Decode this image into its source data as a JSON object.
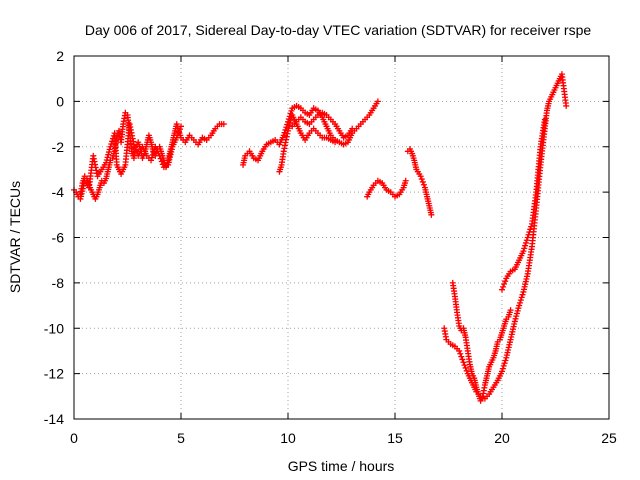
{
  "chart_data": {
    "type": "scatter",
    "title": "Day 006 of 2017, Sidereal Day-to-day VTEC variation (SDTVAR) for receiver rspe",
    "xlabel": "GPS time / hours",
    "ylabel": "SDTVAR / TECUs",
    "xlim": [
      0,
      25
    ],
    "ylim": [
      -14,
      2
    ],
    "xticks": [
      "0",
      "5",
      "10",
      "15",
      "20",
      "25"
    ],
    "yticks": [
      "-14",
      "-12",
      "-10",
      "-8",
      "-6",
      "-4",
      "-2",
      "0",
      "2"
    ],
    "grid": true,
    "marker": "+",
    "color": "#ff0000",
    "series": [
      {
        "segments": [
          [
            [
              0.0,
              -3.9
            ],
            [
              0.1,
              -4.0
            ],
            [
              0.2,
              -4.2
            ],
            [
              0.3,
              -4.1
            ],
            [
              0.4,
              -3.6
            ],
            [
              0.5,
              -3.3
            ],
            [
              0.6,
              -3.4
            ],
            [
              0.7,
              -3.7
            ],
            [
              0.8,
              -3.9
            ],
            [
              0.9,
              -4.1
            ],
            [
              1.0,
              -4.3
            ],
            [
              1.1,
              -4.1
            ],
            [
              1.2,
              -3.8
            ],
            [
              1.3,
              -3.5
            ],
            [
              1.4,
              -3.6
            ],
            [
              1.5,
              -3.4
            ],
            [
              1.6,
              -3.0
            ],
            [
              1.7,
              -2.6
            ],
            [
              1.8,
              -2.5
            ],
            [
              1.9,
              -2.2
            ],
            [
              2.0,
              -1.5
            ],
            [
              2.1,
              -1.3
            ],
            [
              2.2,
              -1.8
            ],
            [
              2.3,
              -1.0
            ],
            [
              2.4,
              -0.5
            ],
            [
              2.5,
              -0.6
            ],
            [
              2.6,
              -1.4
            ],
            [
              2.7,
              -2.2
            ],
            [
              2.8,
              -2.5
            ],
            [
              2.9,
              -2.0
            ],
            [
              3.0,
              -1.8
            ],
            [
              3.1,
              -2.1
            ],
            [
              3.2,
              -2.5
            ],
            [
              3.3,
              -2.3
            ],
            [
              3.4,
              -1.9
            ],
            [
              3.5,
              -1.5
            ],
            [
              3.6,
              -1.8
            ],
            [
              3.7,
              -2.2
            ],
            [
              3.8,
              -2.4
            ],
            [
              3.9,
              -2.1
            ],
            [
              4.0,
              -2.0
            ],
            [
              4.1,
              -2.3
            ],
            [
              4.2,
              -2.6
            ],
            [
              4.3,
              -2.9
            ],
            [
              4.4,
              -2.6
            ],
            [
              4.5,
              -2.2
            ],
            [
              4.6,
              -1.8
            ],
            [
              4.7,
              -1.4
            ],
            [
              4.8,
              -1.0
            ],
            [
              4.9,
              -1.3
            ],
            [
              5.0,
              -1.6
            ],
            [
              5.2,
              -1.8
            ],
            [
              5.4,
              -1.5
            ],
            [
              5.6,
              -1.7
            ],
            [
              5.8,
              -1.9
            ],
            [
              6.0,
              -1.6
            ],
            [
              6.2,
              -1.7
            ],
            [
              6.4,
              -1.5
            ],
            [
              6.6,
              -1.2
            ],
            [
              6.8,
              -1.0
            ],
            [
              7.0,
              -1.0
            ]
          ],
          [
            [
              0.3,
              -4.3
            ],
            [
              0.5,
              -3.5
            ],
            [
              0.7,
              -3.8
            ],
            [
              0.9,
              -2.4
            ],
            [
              1.1,
              -3.3
            ],
            [
              1.3,
              -3.0
            ],
            [
              1.5,
              -2.7
            ],
            [
              1.7,
              -2.0
            ],
            [
              1.9,
              -1.4
            ],
            [
              2.0,
              -2.8
            ],
            [
              2.2,
              -3.2
            ],
            [
              2.4,
              -2.8
            ],
            [
              2.6,
              -1.0
            ],
            [
              2.8,
              -1.9
            ],
            [
              3.0,
              -2.4
            ],
            [
              3.2,
              -2.0
            ],
            [
              3.4,
              -2.4
            ],
            [
              3.6,
              -2.6
            ],
            [
              3.8,
              -2.0
            ],
            [
              4.0,
              -2.4
            ],
            [
              4.2,
              -2.9
            ],
            [
              4.4,
              -2.8
            ],
            [
              4.6,
              -2.0
            ],
            [
              4.8,
              -1.6
            ],
            [
              5.0,
              -1.1
            ]
          ],
          [
            [
              7.9,
              -2.8
            ],
            [
              8.0,
              -2.4
            ],
            [
              8.2,
              -2.2
            ],
            [
              8.4,
              -2.5
            ],
            [
              8.6,
              -2.6
            ],
            [
              8.8,
              -2.2
            ],
            [
              9.0,
              -1.9
            ],
            [
              9.2,
              -1.8
            ],
            [
              9.4,
              -1.7
            ],
            [
              9.6,
              -1.9
            ],
            [
              9.8,
              -1.5
            ],
            [
              10.0,
              -0.9
            ],
            [
              10.2,
              -0.3
            ],
            [
              10.4,
              -0.2
            ],
            [
              10.6,
              -0.3
            ],
            [
              10.8,
              -0.5
            ],
            [
              11.0,
              -0.6
            ],
            [
              11.2,
              -0.3
            ],
            [
              11.4,
              -0.4
            ],
            [
              11.6,
              -0.7
            ],
            [
              11.8,
              -1.1
            ],
            [
              12.0,
              -1.5
            ],
            [
              12.2,
              -1.7
            ],
            [
              12.4,
              -1.8
            ],
            [
              12.6,
              -1.9
            ],
            [
              12.8,
              -1.8
            ],
            [
              13.0,
              -1.4
            ],
            [
              13.2,
              -1.2
            ],
            [
              13.4,
              -1.0
            ],
            [
              13.6,
              -0.8
            ],
            [
              13.8,
              -0.6
            ],
            [
              14.0,
              -0.3
            ],
            [
              14.2,
              0.0
            ]
          ],
          [
            [
              9.6,
              -3.1
            ],
            [
              9.7,
              -2.8
            ],
            [
              9.8,
              -2.2
            ],
            [
              10.0,
              -1.3
            ],
            [
              10.2,
              -0.6
            ],
            [
              10.4,
              -1.0
            ],
            [
              10.6,
              -1.4
            ],
            [
              10.8,
              -1.7
            ],
            [
              11.0,
              -1.4
            ],
            [
              11.2,
              -1.2
            ],
            [
              11.4,
              -1.4
            ],
            [
              11.6,
              -1.6
            ],
            [
              11.8,
              -1.6
            ],
            [
              12.0,
              -1.7
            ],
            [
              12.2,
              -1.8
            ]
          ],
          [
            [
              10.2,
              -1.1
            ],
            [
              10.4,
              -0.9
            ],
            [
              10.6,
              -0.7
            ],
            [
              10.8,
              -0.9
            ],
            [
              11.0,
              -1.0
            ],
            [
              11.2,
              -0.8
            ],
            [
              11.4,
              -0.6
            ],
            [
              11.6,
              -0.5
            ],
            [
              11.8,
              -0.6
            ],
            [
              12.0,
              -0.8
            ],
            [
              12.2,
              -1.0
            ],
            [
              12.4,
              -1.3
            ],
            [
              12.6,
              -1.6
            ],
            [
              12.8,
              -1.5
            ],
            [
              13.0,
              -1.2
            ]
          ],
          [
            [
              13.7,
              -4.2
            ],
            [
              13.8,
              -4.0
            ],
            [
              14.0,
              -3.7
            ],
            [
              14.2,
              -3.5
            ],
            [
              14.4,
              -3.6
            ],
            [
              14.6,
              -3.9
            ],
            [
              14.8,
              -4.0
            ],
            [
              15.0,
              -4.2
            ],
            [
              15.2,
              -4.1
            ],
            [
              15.4,
              -3.8
            ],
            [
              15.5,
              -3.5
            ]
          ],
          [
            [
              15.6,
              -2.2
            ],
            [
              15.7,
              -2.1
            ],
            [
              15.8,
              -2.3
            ],
            [
              15.9,
              -2.6
            ],
            [
              16.0,
              -3.0
            ],
            [
              16.2,
              -3.3
            ],
            [
              16.4,
              -3.8
            ],
            [
              16.5,
              -4.2
            ],
            [
              16.6,
              -4.6
            ],
            [
              16.7,
              -5.0
            ]
          ],
          [
            [
              17.3,
              -10.0
            ],
            [
              17.4,
              -10.5
            ],
            [
              17.6,
              -10.7
            ],
            [
              17.8,
              -10.8
            ],
            [
              18.0,
              -11.0
            ],
            [
              18.2,
              -11.5
            ],
            [
              18.4,
              -12.0
            ],
            [
              18.6,
              -12.4
            ],
            [
              18.8,
              -12.8
            ],
            [
              19.0,
              -13.0
            ],
            [
              19.2,
              -13.1
            ],
            [
              19.4,
              -12.9
            ],
            [
              19.6,
              -12.6
            ],
            [
              19.8,
              -12.3
            ],
            [
              20.0,
              -11.9
            ],
            [
              20.2,
              -11.3
            ],
            [
              20.4,
              -10.5
            ],
            [
              20.6,
              -9.7
            ],
            [
              20.8,
              -9.0
            ],
            [
              21.0,
              -8.4
            ],
            [
              21.2,
              -7.6
            ],
            [
              21.4,
              -6.4
            ],
            [
              21.6,
              -4.7
            ],
            [
              21.8,
              -2.8
            ],
            [
              22.0,
              -1.2
            ],
            [
              22.1,
              -0.4
            ],
            [
              22.2,
              0.0
            ],
            [
              22.4,
              0.4
            ],
            [
              22.6,
              0.8
            ],
            [
              22.8,
              1.2
            ],
            [
              23.0,
              -0.2
            ]
          ],
          [
            [
              17.7,
              -8.0
            ],
            [
              17.8,
              -8.6
            ],
            [
              17.9,
              -9.3
            ],
            [
              18.0,
              -9.9
            ],
            [
              18.1,
              -10.1
            ],
            [
              18.2,
              -10.0
            ],
            [
              18.3,
              -10.4
            ],
            [
              18.4,
              -11.0
            ],
            [
              18.5,
              -11.6
            ],
            [
              18.6,
              -12.0
            ],
            [
              18.7,
              -12.2
            ],
            [
              18.8,
              -12.6
            ],
            [
              18.9,
              -12.9
            ],
            [
              19.0,
              -13.2
            ],
            [
              19.1,
              -13.0
            ],
            [
              19.2,
              -12.5
            ],
            [
              19.3,
              -12.1
            ],
            [
              19.4,
              -11.7
            ],
            [
              19.5,
              -11.5
            ],
            [
              19.6,
              -11.3
            ],
            [
              19.7,
              -11.0
            ],
            [
              19.8,
              -10.6
            ],
            [
              19.9,
              -10.5
            ],
            [
              20.0,
              -10.2
            ],
            [
              20.1,
              -9.9
            ],
            [
              20.2,
              -9.6
            ],
            [
              20.3,
              -9.5
            ],
            [
              20.4,
              -9.2
            ]
          ],
          [
            [
              20.0,
              -8.3
            ],
            [
              20.2,
              -7.8
            ],
            [
              20.4,
              -7.5
            ],
            [
              20.6,
              -7.4
            ],
            [
              20.8,
              -7.0
            ],
            [
              21.0,
              -6.6
            ],
            [
              21.2,
              -6.0
            ],
            [
              21.4,
              -5.4
            ],
            [
              21.6,
              -4.0
            ],
            [
              21.8,
              -2.0
            ],
            [
              22.0,
              -0.8
            ]
          ]
        ]
      }
    ]
  }
}
